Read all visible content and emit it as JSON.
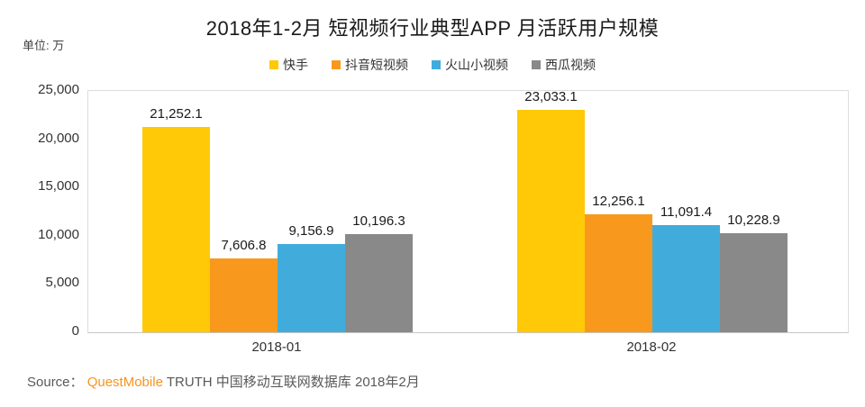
{
  "title": "2018年1-2月 短视频行业典型APP 月活跃用户规模",
  "unit_label": "单位: 万",
  "source": {
    "prefix": "Source：  ",
    "brand": "QuestMobile",
    "suffix": " TRUTH 中国移动互联网数据库 2018年2月"
  },
  "colors": {
    "kuaishou_yellow": "#FFC907",
    "douyin_orange": "#F8991D",
    "huoshan_blue": "#41ACDC",
    "xigua_gray": "#898989",
    "brand_orange": "#F7941E",
    "axis_border": "#DCDCDC",
    "title_text": "#1A1A1A",
    "axis_text": "#333333",
    "source_text": "#595959"
  },
  "chart_data": {
    "type": "bar",
    "title": "2018年1-2月 短视频行业典型APP 月活跃用户规模",
    "unit": "万",
    "categories": [
      "2018-01",
      "2018-02"
    ],
    "series": [
      {
        "name": "快手",
        "color": "#FFC907",
        "values": [
          21252.1,
          23033.1
        ]
      },
      {
        "name": "抖音短视频",
        "color": "#F8991D",
        "values": [
          7606.8,
          12256.1
        ]
      },
      {
        "name": "火山小视频",
        "color": "#41ACDC",
        "values": [
          9156.9,
          11091.4
        ]
      },
      {
        "name": "西瓜视频",
        "color": "#898989",
        "values": [
          10196.3,
          10228.9
        ]
      }
    ],
    "ylim": [
      0,
      25000
    ],
    "yticks": [
      0,
      5000,
      10000,
      15000,
      20000,
      25000
    ],
    "grid": false,
    "legend_position": "top",
    "data_labels": true
  }
}
